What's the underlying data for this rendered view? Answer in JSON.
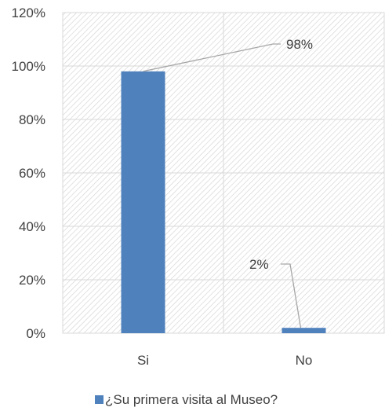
{
  "chart_data": {
    "type": "bar",
    "categories": [
      "Si",
      "No"
    ],
    "series": [
      {
        "name": "¿Su primera visita al Museo?",
        "values": [
          98,
          2
        ],
        "color": "#4F81BD"
      }
    ],
    "data_labels": [
      "98%",
      "2%"
    ],
    "ylim": [
      0,
      120
    ],
    "y_ticks": [
      0,
      20,
      40,
      60,
      80,
      100,
      120
    ],
    "y_tick_labels": [
      "0%",
      "20%",
      "40%",
      "60%",
      "80%",
      "100%",
      "120%"
    ],
    "grid": true,
    "legend_position": "bottom",
    "plot_background": "hatched-light-gray",
    "gridline_color": "#d9d9d9",
    "leader_line_color": "#a6a6a6"
  }
}
